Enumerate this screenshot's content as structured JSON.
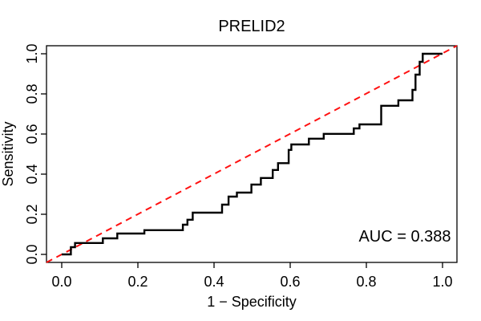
{
  "figure": {
    "title": "PRELID2",
    "x_axis_label": "1 − Specificity",
    "y_axis_label": "Sensitivity",
    "auc_label": "AUC = 0.388"
  },
  "colors": {
    "roc_curve": "#000000",
    "chance_diagonal": "#ff1111",
    "axis": "#000000",
    "background": "#ffffff"
  },
  "chart_data": {
    "type": "line",
    "subtype": "roc-step-curve",
    "title": "PRELID2",
    "xlabel": "1 − Specificity",
    "ylabel": "Sensitivity",
    "xlim": [
      0,
      1
    ],
    "ylim": [
      0,
      1
    ],
    "grid": false,
    "x_ticks": [
      0.0,
      0.2,
      0.4,
      0.6,
      0.8,
      1.0
    ],
    "y_ticks": [
      0.0,
      0.2,
      0.4,
      0.6,
      0.8,
      1.0
    ],
    "auc": 0.388,
    "annotations": [
      {
        "text": "AUC = 0.388",
        "x": 0.9,
        "y": 0.08
      }
    ],
    "series": [
      {
        "name": "ROC curve",
        "style": "solid-step",
        "color": "#000000",
        "points": [
          [
            0.0,
            0.0
          ],
          [
            0.024,
            0.0
          ],
          [
            0.024,
            0.036
          ],
          [
            0.035,
            0.036
          ],
          [
            0.035,
            0.057
          ],
          [
            0.108,
            0.057
          ],
          [
            0.108,
            0.08
          ],
          [
            0.146,
            0.08
          ],
          [
            0.146,
            0.104
          ],
          [
            0.217,
            0.104
          ],
          [
            0.217,
            0.121
          ],
          [
            0.318,
            0.121
          ],
          [
            0.318,
            0.148
          ],
          [
            0.33,
            0.148
          ],
          [
            0.33,
            0.173
          ],
          [
            0.344,
            0.173
          ],
          [
            0.344,
            0.208
          ],
          [
            0.421,
            0.208
          ],
          [
            0.421,
            0.248
          ],
          [
            0.438,
            0.248
          ],
          [
            0.438,
            0.288
          ],
          [
            0.46,
            0.288
          ],
          [
            0.46,
            0.308
          ],
          [
            0.498,
            0.308
          ],
          [
            0.498,
            0.348
          ],
          [
            0.523,
            0.348
          ],
          [
            0.523,
            0.381
          ],
          [
            0.554,
            0.381
          ],
          [
            0.554,
            0.421
          ],
          [
            0.568,
            0.421
          ],
          [
            0.568,
            0.455
          ],
          [
            0.596,
            0.455
          ],
          [
            0.596,
            0.521
          ],
          [
            0.603,
            0.521
          ],
          [
            0.603,
            0.548
          ],
          [
            0.649,
            0.548
          ],
          [
            0.649,
            0.577
          ],
          [
            0.688,
            0.577
          ],
          [
            0.688,
            0.601
          ],
          [
            0.767,
            0.601
          ],
          [
            0.767,
            0.628
          ],
          [
            0.782,
            0.628
          ],
          [
            0.782,
            0.648
          ],
          [
            0.839,
            0.648
          ],
          [
            0.839,
            0.741
          ],
          [
            0.884,
            0.741
          ],
          [
            0.884,
            0.768
          ],
          [
            0.921,
            0.768
          ],
          [
            0.921,
            0.82
          ],
          [
            0.929,
            0.82
          ],
          [
            0.929,
            0.896
          ],
          [
            0.94,
            0.896
          ],
          [
            0.94,
            0.96
          ],
          [
            0.948,
            0.96
          ],
          [
            0.948,
            1.0
          ],
          [
            1.0,
            1.0
          ]
        ]
      },
      {
        "name": "chance diagonal",
        "style": "dashed",
        "color": "#ff1111",
        "points": [
          [
            0,
            0
          ],
          [
            1,
            1
          ]
        ]
      }
    ]
  }
}
